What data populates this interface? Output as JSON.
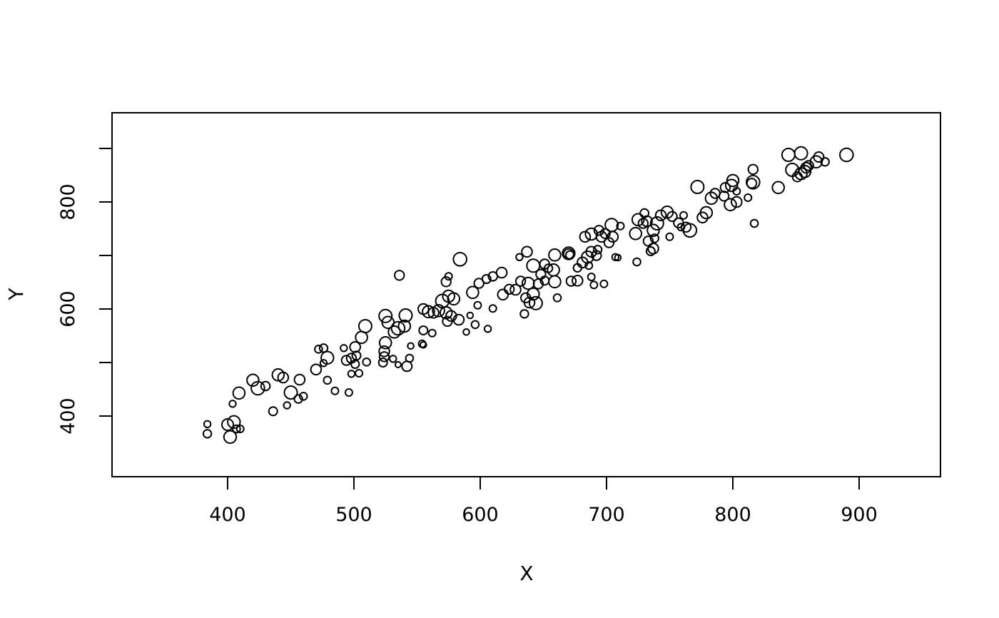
{
  "figure": {
    "background": "#ffffff",
    "line_color": "#000000",
    "point_style": "open-circle"
  },
  "chart_data": {
    "type": "scatter",
    "title": "",
    "xlabel": "X",
    "ylabel": "Y",
    "grid": false,
    "legend": null,
    "x_ticks": [
      400,
      500,
      600,
      700,
      800,
      900
    ],
    "x_tick_labels": [
      "400",
      "500",
      "600",
      "700",
      "800",
      "900"
    ],
    "y_ticks": [
      400,
      500,
      600,
      700,
      800,
      900
    ],
    "y_tick_labels": [
      "400",
      "",
      "600",
      "",
      "800",
      ""
    ],
    "xlim": [
      308.5,
      964.4
    ],
    "ylim": [
      286.7,
      966.7
    ],
    "points_format": "[x, y, marker_radius_px]",
    "points": [
      [
        384,
        385,
        4.7
      ],
      [
        384,
        367,
        5.7
      ],
      [
        400,
        384,
        8
      ],
      [
        405,
        389,
        8.7
      ],
      [
        407,
        376,
        5.3
      ],
      [
        410,
        376,
        5
      ],
      [
        402,
        361,
        8.7
      ],
      [
        404,
        423,
        4.7
      ],
      [
        409,
        443,
        8.3
      ],
      [
        420,
        467,
        8.3
      ],
      [
        424,
        452,
        9.3
      ],
      [
        430,
        456,
        6.3
      ],
      [
        436,
        409,
        6
      ],
      [
        440,
        477,
        8.3
      ],
      [
        444,
        472,
        7.3
      ],
      [
        447,
        420,
        4.7
      ],
      [
        450,
        444,
        9
      ],
      [
        456,
        432,
        5.7
      ],
      [
        460,
        437,
        5.3
      ],
      [
        457,
        468,
        7.3
      ],
      [
        479,
        467,
        5.3
      ],
      [
        485,
        447,
        5
      ],
      [
        496,
        444,
        5
      ],
      [
        472,
        525,
        5.3
      ],
      [
        476,
        527,
        5.7
      ],
      [
        479,
        509,
        8.7
      ],
      [
        476,
        499,
        4.7
      ],
      [
        470,
        487,
        7.3
      ],
      [
        492,
        527,
        4.7
      ],
      [
        494,
        504,
        6.7
      ],
      [
        498,
        479,
        4.7
      ],
      [
        504,
        480,
        5
      ],
      [
        509,
        568,
        9
      ],
      [
        506,
        547,
        8.3
      ],
      [
        501,
        529,
        7.3
      ],
      [
        502,
        513,
        6
      ],
      [
        498,
        508,
        6.7
      ],
      [
        501,
        497,
        5.7
      ],
      [
        510,
        501,
        5.3
      ],
      [
        525,
        587,
        9
      ],
      [
        527,
        575,
        8.3
      ],
      [
        535,
        564,
        9.3
      ],
      [
        532,
        557,
        8.3
      ],
      [
        540,
        568,
        8.3
      ],
      [
        541,
        588,
        9
      ],
      [
        525,
        537,
        8.3
      ],
      [
        524,
        521,
        7.3
      ],
      [
        524,
        511,
        6.7
      ],
      [
        523,
        500,
        6
      ],
      [
        531,
        507,
        4.7
      ],
      [
        535,
        496,
        4
      ],
      [
        542,
        493,
        7
      ],
      [
        544,
        508,
        5.3
      ],
      [
        545,
        531,
        4.3
      ],
      [
        554,
        535,
        5
      ],
      [
        555,
        533,
        4.3
      ],
      [
        555,
        560,
        6
      ],
      [
        562,
        555,
        5
      ],
      [
        555,
        600,
        7.3
      ],
      [
        559,
        595,
        8.3
      ],
      [
        563,
        593,
        7.3
      ],
      [
        567,
        597,
        8.3
      ],
      [
        570,
        615,
        9.3
      ],
      [
        575,
        624,
        8.3
      ],
      [
        579,
        619,
        8.3
      ],
      [
        573,
        593,
        8.3
      ],
      [
        577,
        587,
        7.3
      ],
      [
        583,
        580,
        7.3
      ],
      [
        574,
        577,
        6.7
      ],
      [
        573,
        651,
        6.7
      ],
      [
        594,
        631,
        8.3
      ],
      [
        599,
        648,
        6.7
      ],
      [
        605,
        656,
        6
      ],
      [
        598,
        607,
        5
      ],
      [
        610,
        601,
        5
      ],
      [
        592,
        588,
        4.3
      ],
      [
        596,
        571,
        5.3
      ],
      [
        589,
        557,
        4.3
      ],
      [
        606,
        563,
        4.7
      ],
      [
        618,
        627,
        7.3
      ],
      [
        584,
        693,
        9.3
      ],
      [
        536,
        663,
        6.7
      ],
      [
        575,
        661,
        5
      ],
      [
        610,
        661,
        6.3
      ],
      [
        617,
        668,
        7.3
      ],
      [
        631,
        697,
        4.7
      ],
      [
        637,
        707,
        7.3
      ],
      [
        642,
        681,
        9
      ],
      [
        651,
        684,
        6.7
      ],
      [
        654,
        676,
        5.7
      ],
      [
        658,
        673,
        8.3
      ],
      [
        659,
        701,
        8.3
      ],
      [
        670,
        704,
        8.7
      ],
      [
        670,
        703,
        7
      ],
      [
        671,
        701,
        5.7
      ],
      [
        677,
        677,
        5.7
      ],
      [
        681,
        687,
        7.3
      ],
      [
        685,
        697,
        8.3
      ],
      [
        686,
        681,
        5
      ],
      [
        688,
        707,
        7.3
      ],
      [
        692,
        700,
        6.7
      ],
      [
        693,
        711,
        5.7
      ],
      [
        694,
        747,
        6.7
      ],
      [
        688,
        740,
        8.3
      ],
      [
        683,
        735,
        7.3
      ],
      [
        696,
        735,
        7.3
      ],
      [
        699,
        741,
        6.7
      ],
      [
        704,
        757,
        9
      ],
      [
        705,
        735,
        7.3
      ],
      [
        702,
        724,
        6.7
      ],
      [
        711,
        755,
        5
      ],
      [
        707,
        697,
        4.7
      ],
      [
        709,
        696,
        4.3
      ],
      [
        724,
        688,
        5.3
      ],
      [
        723,
        741,
        8.3
      ],
      [
        725,
        767,
        8.3
      ],
      [
        729,
        760,
        6.7
      ],
      [
        732,
        764,
        7.3
      ],
      [
        730,
        779,
        6
      ],
      [
        737,
        747,
        8.3
      ],
      [
        740,
        760,
        9
      ],
      [
        743,
        775,
        7.3
      ],
      [
        733,
        727,
        6.7
      ],
      [
        737,
        713,
        7.3
      ],
      [
        735,
        708,
        6
      ],
      [
        648,
        665,
        6.7
      ],
      [
        688,
        660,
        5
      ],
      [
        623,
        637,
        6.7
      ],
      [
        628,
        636,
        7.3
      ],
      [
        632,
        652,
        6.7
      ],
      [
        638,
        648,
        8.3
      ],
      [
        646,
        647,
        6.7
      ],
      [
        651,
        653,
        6
      ],
      [
        659,
        651,
        8.3
      ],
      [
        672,
        652,
        6.7
      ],
      [
        677,
        653,
        7.3
      ],
      [
        642,
        628,
        8.3
      ],
      [
        636,
        621,
        6.7
      ],
      [
        644,
        611,
        9
      ],
      [
        639,
        612,
        7.3
      ],
      [
        635,
        591,
        5.7
      ],
      [
        661,
        621,
        5.3
      ],
      [
        690,
        645,
        5
      ],
      [
        698,
        647,
        5
      ],
      [
        772,
        828,
        9
      ],
      [
        783,
        807,
        8.3
      ],
      [
        786,
        816,
        6.7
      ],
      [
        800,
        840,
        8.3
      ],
      [
        799,
        831,
        8.3
      ],
      [
        794,
        827,
        6.7
      ],
      [
        803,
        820,
        5
      ],
      [
        816,
        861,
        6.7
      ],
      [
        816,
        837,
        9.3
      ],
      [
        815,
        835,
        6.7
      ],
      [
        836,
        827,
        8.3
      ],
      [
        844,
        888,
        9
      ],
      [
        854,
        891,
        9
      ],
      [
        847,
        860,
        9
      ],
      [
        854,
        853,
        8.3
      ],
      [
        857,
        857,
        8.3
      ],
      [
        858,
        864,
        7.3
      ],
      [
        860,
        868,
        6.7
      ],
      [
        851,
        847,
        6.7
      ],
      [
        866,
        875,
        8.3
      ],
      [
        868,
        884,
        7
      ],
      [
        748,
        781,
        8.3
      ],
      [
        752,
        773,
        6.7
      ],
      [
        757,
        761,
        6.7
      ],
      [
        761,
        775,
        5
      ],
      [
        759,
        753,
        5
      ],
      [
        738,
        732,
        5.7
      ],
      [
        750,
        735,
        5
      ],
      [
        766,
        747,
        9.3
      ],
      [
        763,
        753,
        6.7
      ],
      [
        776,
        771,
        7.3
      ],
      [
        779,
        780,
        8.3
      ],
      [
        793,
        811,
        6.7
      ],
      [
        798,
        795,
        8.3
      ],
      [
        803,
        800,
        7.3
      ],
      [
        812,
        808,
        5
      ],
      [
        817,
        760,
        5.3
      ],
      [
        873,
        875,
        5.7
      ],
      [
        890,
        888,
        9.3
      ]
    ]
  }
}
